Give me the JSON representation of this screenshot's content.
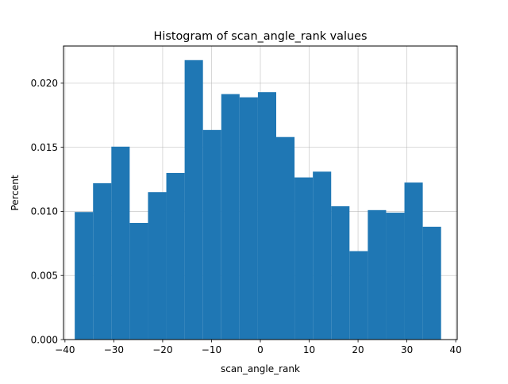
{
  "chart_data": {
    "type": "bar",
    "title": "Histogram of scan_angle_rank values",
    "xlabel": "scan_angle_rank",
    "ylabel": "Percent",
    "xlim": [
      -40.3,
      40.3
    ],
    "ylim": [
      0,
      0.0229
    ],
    "grid": true,
    "bar_color": "#1f77b4",
    "grid_color": "#b0b0b0",
    "x_ticks": [
      -40,
      -30,
      -20,
      -10,
      0,
      10,
      20,
      30,
      40
    ],
    "x_tick_labels": [
      "−40",
      "−30",
      "−20",
      "−10",
      "0",
      "10",
      "20",
      "30",
      "40"
    ],
    "y_ticks": [
      0,
      0.005,
      0.01,
      0.015,
      0.02
    ],
    "y_tick_labels": [
      "0.000",
      "0.005",
      "0.010",
      "0.015",
      "0.020"
    ],
    "bin_edges": [
      -38,
      -34.25,
      -30.5,
      -26.75,
      -23,
      -19.25,
      -15.5,
      -11.75,
      -8,
      -4.25,
      -0.5,
      3.25,
      7,
      10.75,
      14.5,
      18.25,
      22,
      25.75,
      29.5,
      33.25,
      37
    ],
    "values": [
      0.00995,
      0.0122,
      0.01505,
      0.0091,
      0.0115,
      0.013,
      0.0218,
      0.01635,
      0.01915,
      0.0189,
      0.0193,
      0.0158,
      0.01265,
      0.0131,
      0.0104,
      0.0069,
      0.0101,
      0.0099,
      0.01225,
      0.0088
    ]
  }
}
